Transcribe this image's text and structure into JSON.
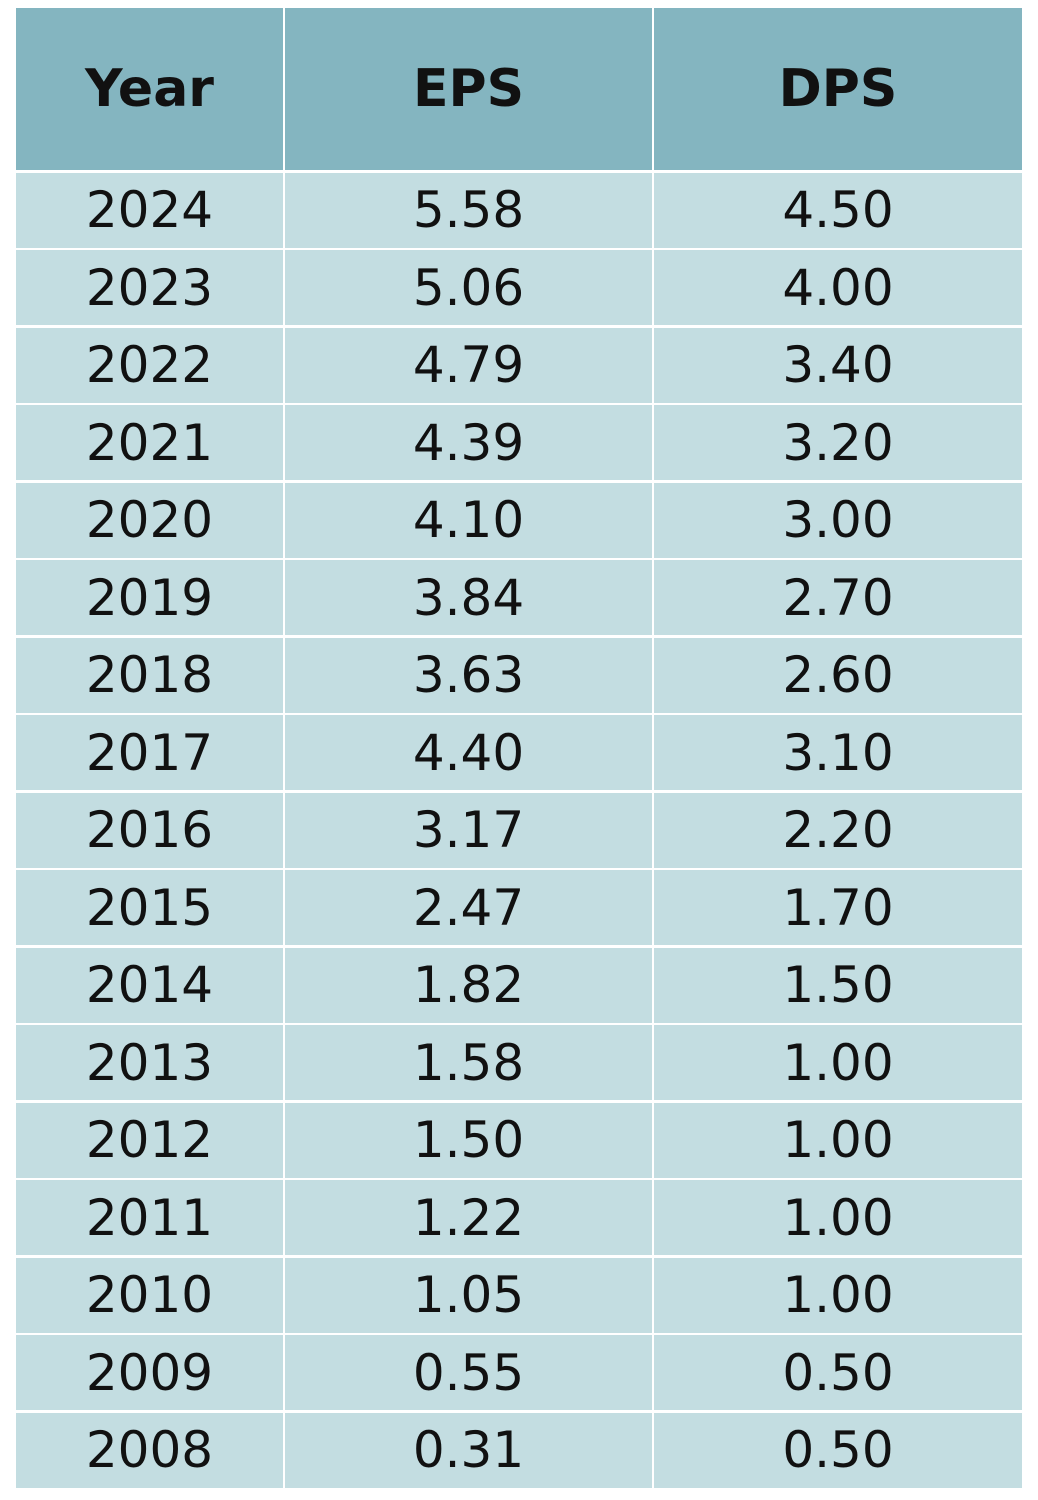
{
  "table": {
    "header": [
      "Year",
      "EPS",
      "DPS"
    ],
    "rows": [
      [
        "2024",
        "5.58",
        "4.50"
      ],
      [
        "2023",
        "5.06",
        "4.00"
      ],
      [
        "2022",
        "4.79",
        "3.40"
      ],
      [
        "2021",
        "4.39",
        "3.20"
      ],
      [
        "2020",
        "4.10",
        "3.00"
      ],
      [
        "2019",
        "3.84",
        "2.70"
      ],
      [
        "2018",
        "3.63",
        "2.60"
      ],
      [
        "2017",
        "4.40",
        "3.10"
      ],
      [
        "2016",
        "3.17",
        "2.20"
      ],
      [
        "2015",
        "2.47",
        "1.70"
      ],
      [
        "2014",
        "1.82",
        "1.50"
      ],
      [
        "2013",
        "1.58",
        "1.00"
      ],
      [
        "2012",
        "1.50",
        "1.00"
      ],
      [
        "2011",
        "1.22",
        "1.00"
      ],
      [
        "2010",
        "1.05",
        "1.00"
      ],
      [
        "2009",
        "0.55",
        "0.50"
      ],
      [
        "2008",
        "0.31",
        "0.50"
      ]
    ]
  }
}
